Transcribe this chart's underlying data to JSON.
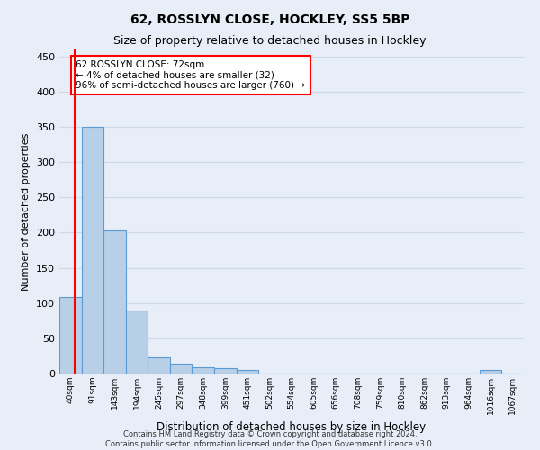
{
  "title1": "62, ROSSLYN CLOSE, HOCKLEY, SS5 5BP",
  "title2": "Size of property relative to detached houses in Hockley",
  "xlabel": "Distribution of detached houses by size in Hockley",
  "ylabel": "Number of detached properties",
  "footnote": "Contains HM Land Registry data © Crown copyright and database right 2024.\nContains public sector information licensed under the Open Government Licence v3.0.",
  "categories": [
    "40sqm",
    "91sqm",
    "143sqm",
    "194sqm",
    "245sqm",
    "297sqm",
    "348sqm",
    "399sqm",
    "451sqm",
    "502sqm",
    "554sqm",
    "605sqm",
    "656sqm",
    "708sqm",
    "759sqm",
    "810sqm",
    "862sqm",
    "913sqm",
    "964sqm",
    "1016sqm",
    "1067sqm"
  ],
  "values": [
    108,
    350,
    203,
    90,
    23,
    14,
    9,
    8,
    5,
    0,
    0,
    0,
    0,
    0,
    0,
    0,
    0,
    0,
    0,
    5,
    0
  ],
  "bar_color": "#b8cfe8",
  "bar_edge_color": "#5b9bd5",
  "annotation_text": "62 ROSSLYN CLOSE: 72sqm\n← 4% of detached houses are smaller (32)\n96% of semi-detached houses are larger (760) →",
  "annotation_box_color": "white",
  "annotation_box_edge_color": "red",
  "red_line_x": 0.18,
  "ylim": [
    0,
    460
  ],
  "yticks": [
    0,
    50,
    100,
    150,
    200,
    250,
    300,
    350,
    400,
    450
  ],
  "background_color": "#e8eef8",
  "grid_color": "#d0d8e8",
  "title1_fontsize": 10,
  "title2_fontsize": 9
}
